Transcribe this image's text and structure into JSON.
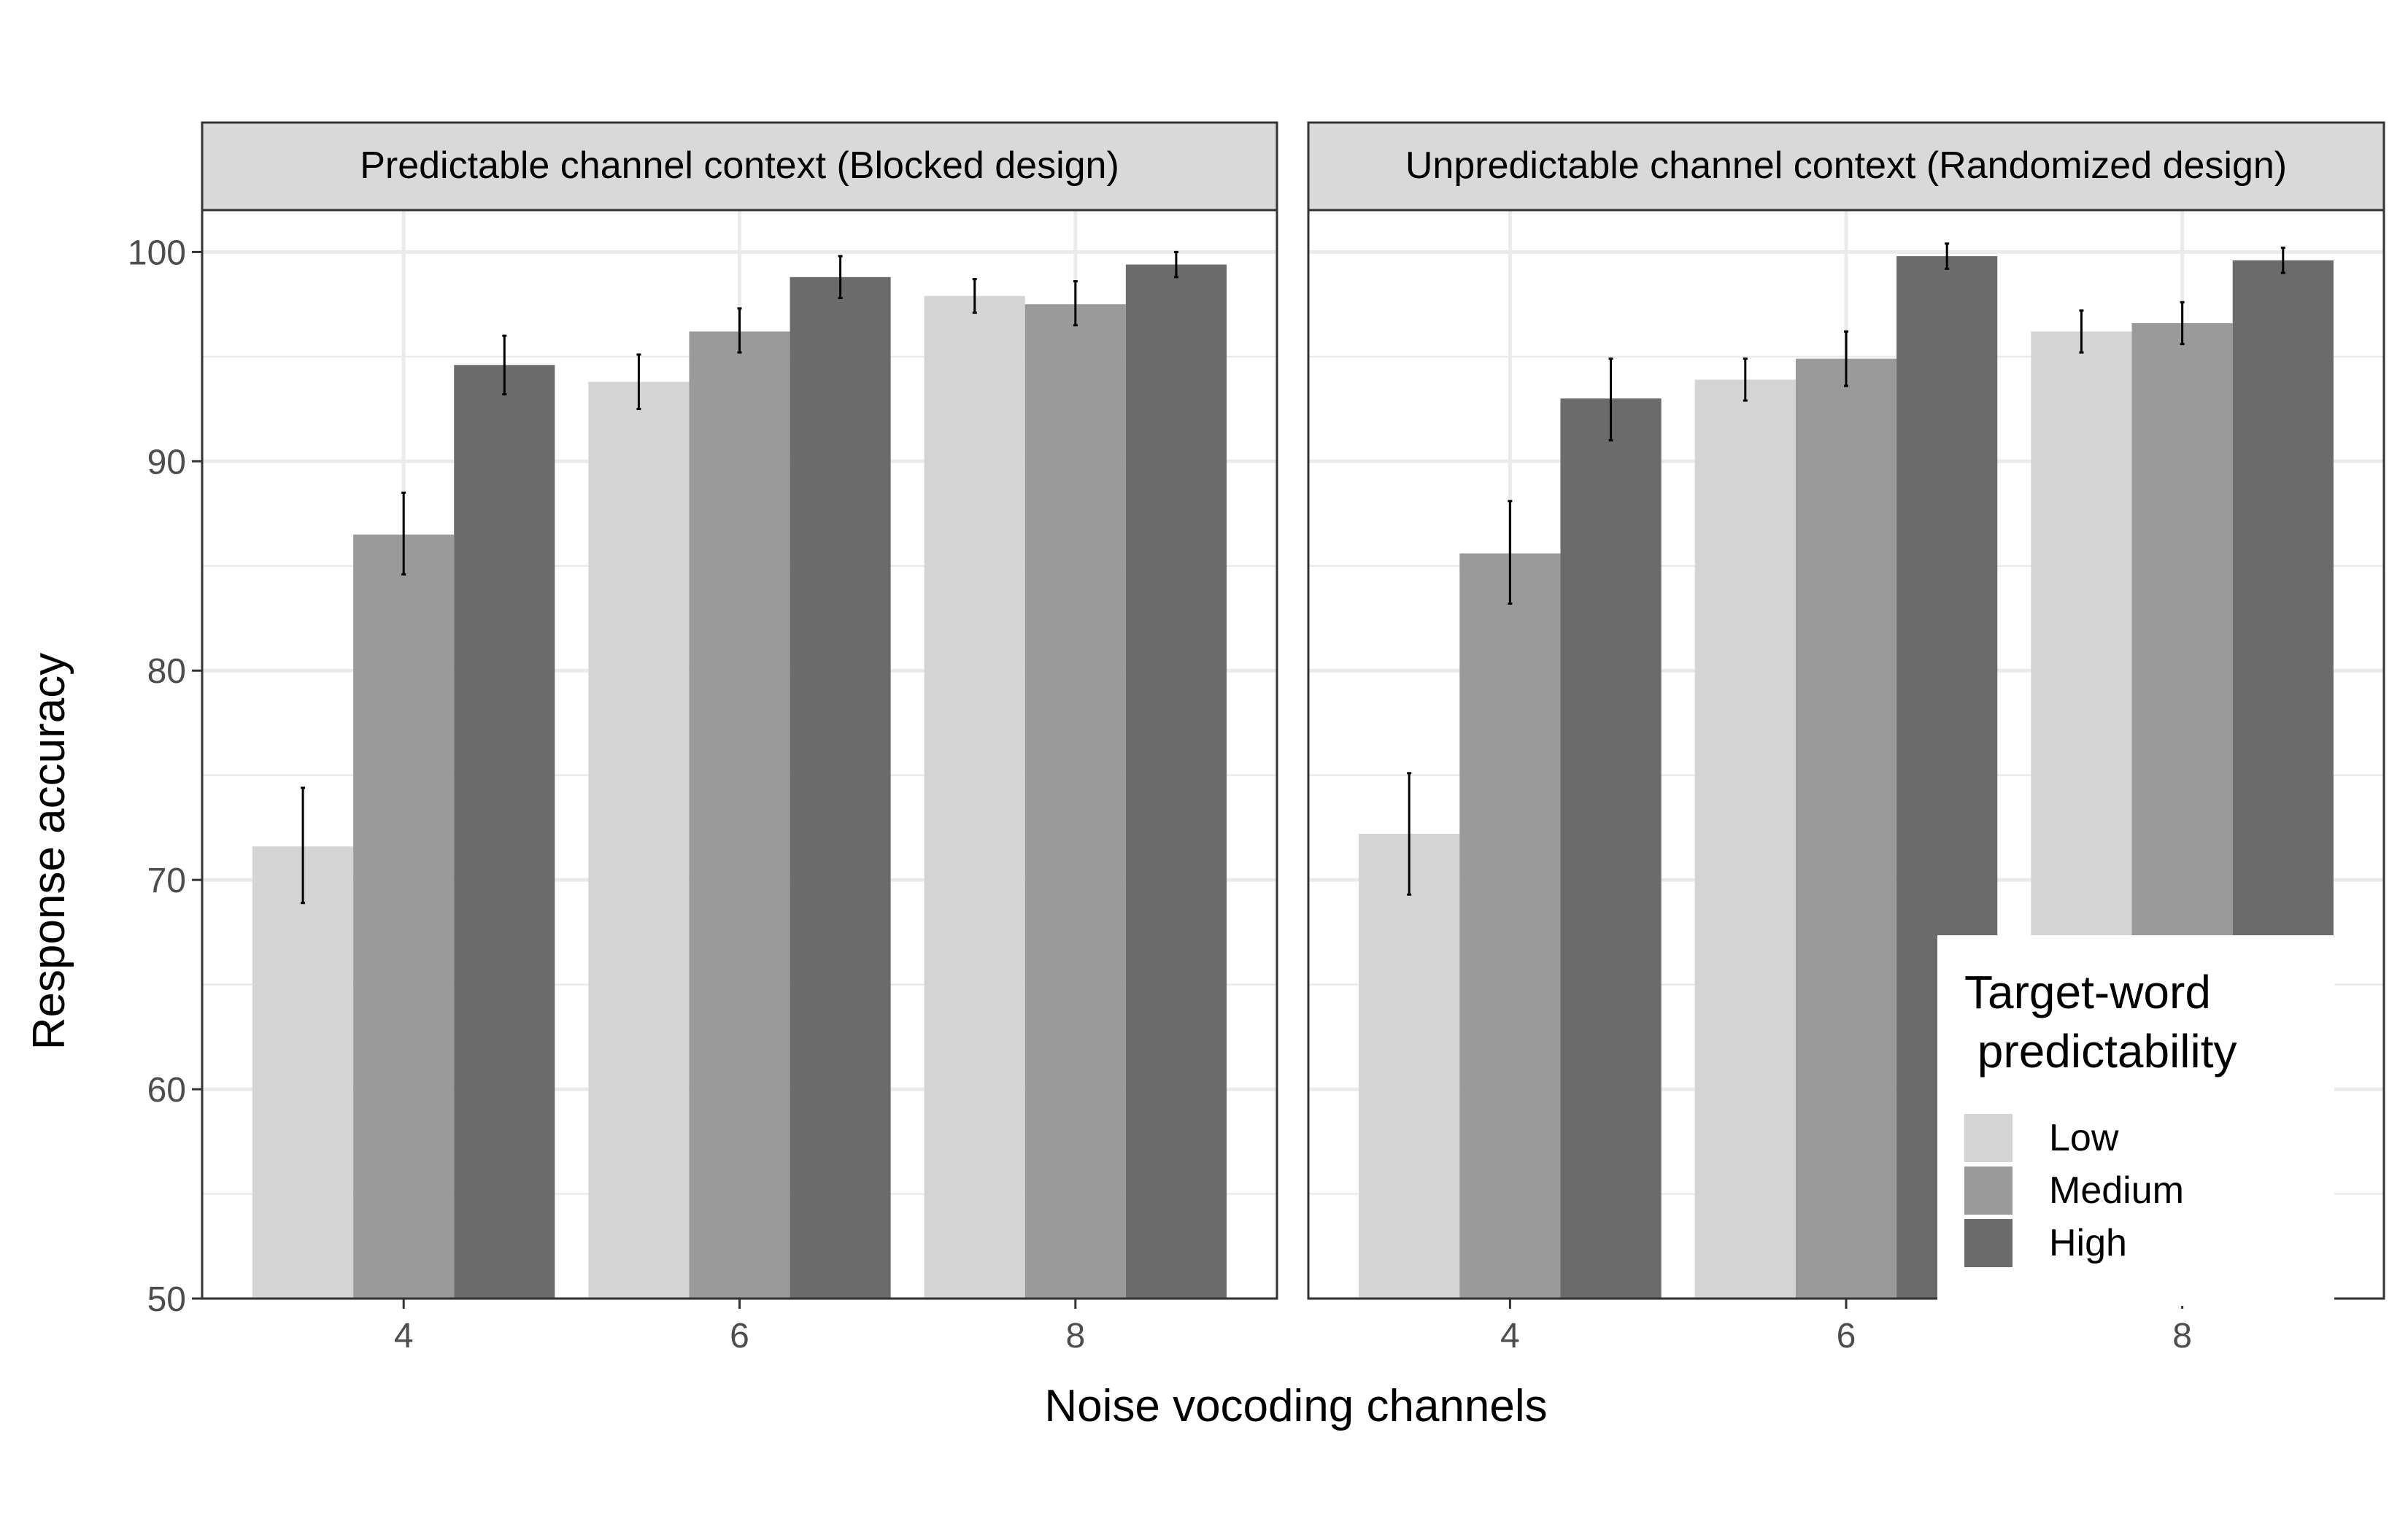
{
  "chart_data": {
    "type": "bar",
    "xlabel": "Noise vocoding channels",
    "ylabel": "Response accuracy",
    "ylim": [
      50,
      102
    ],
    "yticks": [
      50,
      60,
      70,
      80,
      90,
      100
    ],
    "categories": [
      "4",
      "6",
      "8"
    ],
    "grid": true,
    "legend": {
      "title_line1": "Target-word",
      "title_line2": " predictability",
      "placement": "bottom-right",
      "entries": [
        "Low",
        "Medium",
        "High"
      ]
    },
    "series_colors": {
      "Low": "#d4d4d4",
      "Medium": "#9a9a9a",
      "High": "#6b6b6b"
    },
    "panels": [
      {
        "title": "Predictable channel context (Blocked design)",
        "series": [
          {
            "name": "Low",
            "values": [
              71.6,
              93.8,
              97.9
            ],
            "err_low": [
              68.9,
              92.5,
              97.1
            ],
            "err_high": [
              74.4,
              95.1,
              98.7
            ]
          },
          {
            "name": "Medium",
            "values": [
              86.5,
              96.2,
              97.5
            ],
            "err_low": [
              84.6,
              95.2,
              96.5
            ],
            "err_high": [
              88.5,
              97.3,
              98.6
            ]
          },
          {
            "name": "High",
            "values": [
              94.6,
              98.8,
              99.4
            ],
            "err_low": [
              93.2,
              97.8,
              98.8
            ],
            "err_high": [
              96.0,
              99.8,
              100.0
            ]
          }
        ]
      },
      {
        "title": "Unpredictable channel context (Randomized design)",
        "series": [
          {
            "name": "Low",
            "values": [
              72.2,
              93.9,
              96.2
            ],
            "err_low": [
              69.3,
              92.9,
              95.2
            ],
            "err_high": [
              75.1,
              94.9,
              97.2
            ]
          },
          {
            "name": "Medium",
            "values": [
              85.6,
              94.9,
              96.6
            ],
            "err_low": [
              83.2,
              93.6,
              95.6
            ],
            "err_high": [
              88.1,
              96.2,
              97.6
            ]
          },
          {
            "name": "High",
            "values": [
              93.0,
              99.8,
              99.6
            ],
            "err_low": [
              91.0,
              99.2,
              99.0
            ],
            "err_high": [
              94.9,
              100.4,
              100.2
            ]
          }
        ]
      }
    ]
  }
}
